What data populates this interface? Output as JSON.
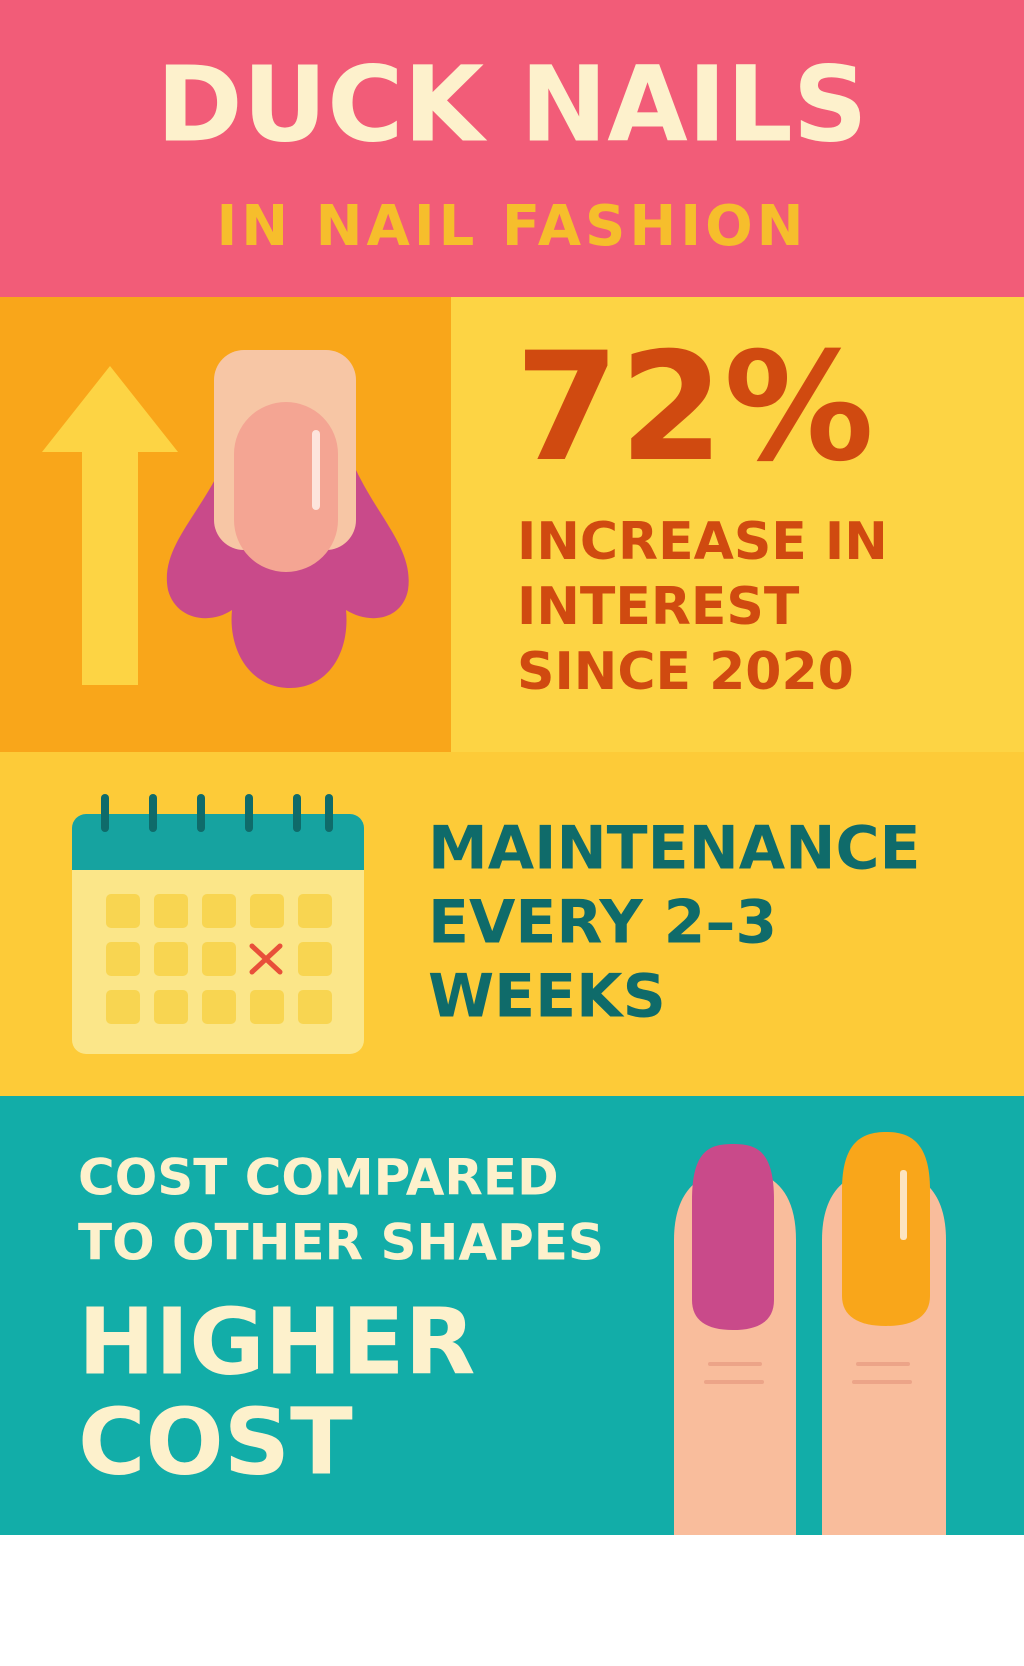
{
  "header": {
    "title": "DUCK NAILS",
    "subtitle": "IN NAIL FASHION"
  },
  "interest": {
    "value": "72%",
    "lines": [
      "INCREASE IN",
      "INTEREST",
      "SINCE 2020"
    ]
  },
  "maintenance": {
    "lines": [
      "MAINTENANCE",
      "EVERY 2–3",
      "WEEKS"
    ]
  },
  "cost": {
    "lines": [
      "COST COMPARED",
      "TO OTHER SHAPES"
    ],
    "verdict": [
      "HIGHER",
      "COST"
    ]
  }
}
